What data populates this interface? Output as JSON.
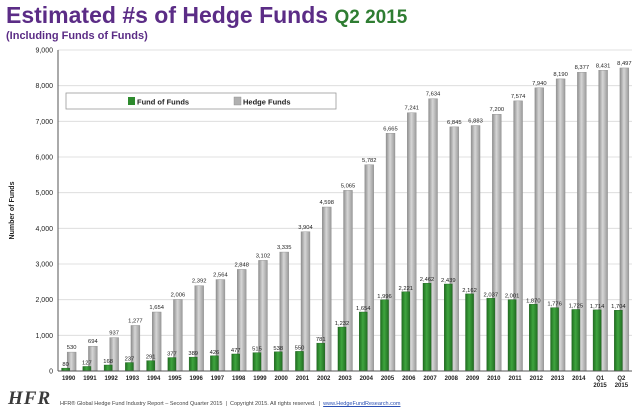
{
  "header": {
    "title": "Estimated #s of Hedge Funds",
    "title_accent": "Q2 2015",
    "subtitle": "(Including Funds of Funds)"
  },
  "footer": {
    "logo": "HFR",
    "report": "HFR® Global Hedge Fund Industry Report – Second Quarter 2015",
    "copyright": "Copyright 2015. All rights reserved.",
    "website": "www.HedgeFundResearch.com"
  },
  "colors": {
    "title": "#5b2c86",
    "accent": "#2f7d32",
    "fund_of_funds": "#2e8b2e",
    "hedge_funds": "#a8a8a8"
  },
  "chart_data": {
    "type": "bar",
    "title": "Estimated #s of Hedge Funds Q2 2015",
    "subtitle": "(Including Funds of Funds)",
    "xlabel": "",
    "ylabel": "Number of Funds",
    "ylim": [
      0,
      9000
    ],
    "yticks": [
      0,
      1000,
      2000,
      3000,
      4000,
      5000,
      6000,
      7000,
      8000,
      9000
    ],
    "ytick_labels": [
      "0",
      "1,000",
      "2,000",
      "3,000",
      "4,000",
      "5,000",
      "6,000",
      "7,000",
      "8,000",
      "9,000"
    ],
    "grid": true,
    "legend_position": "top-left",
    "categories": [
      "1990",
      "1991",
      "1992",
      "1993",
      "1994",
      "1995",
      "1996",
      "1997",
      "1998",
      "1999",
      "2000",
      "2001",
      "2002",
      "2003",
      "2004",
      "2005",
      "2006",
      "2007",
      "2008",
      "2009",
      "2010",
      "2011",
      "2012",
      "2013",
      "2014",
      "Q1 2015",
      "Q2 2015"
    ],
    "series": [
      {
        "name": "Fund of Funds",
        "values": [
          80,
          127,
          168,
          237,
          291,
          377,
          389,
          426,
          477,
          515,
          538,
          550,
          781,
          1232,
          1654,
          1996,
          2221,
          2462,
          2439,
          2162,
          2037,
          2001,
          1870,
          1776,
          1725,
          1714,
          1704
        ],
        "labels": [
          "80",
          "127",
          "168",
          "237",
          "291",
          "377",
          "389",
          "426",
          "477",
          "515",
          "538",
          "550",
          "781",
          "1,232",
          "1,654",
          "1,996",
          "2,221",
          "2,462",
          "2,439",
          "2,162",
          "2,037",
          "2,001",
          "1,870",
          "1,776",
          "1,725",
          "1,714",
          "1,704"
        ]
      },
      {
        "name": "Hedge Funds",
        "values": [
          530,
          694,
          937,
          1277,
          1654,
          2006,
          2392,
          2564,
          2848,
          3102,
          3335,
          3904,
          4598,
          5065,
          5782,
          6665,
          7241,
          7634,
          6845,
          6883,
          7200,
          7574,
          7940,
          8190,
          8377,
          8431,
          8497
        ],
        "labels": [
          "530",
          "694",
          "937",
          "1,277",
          "1,654",
          "2,006",
          "2,392",
          "2,564",
          "2,848",
          "3,102",
          "3,335",
          "3,904",
          "4,598",
          "5,065",
          "5,782",
          "6,665",
          "7,241",
          "7,634",
          "6,845",
          "6,883",
          "7,200",
          "7,574",
          "7,940",
          "8,190",
          "8,377",
          "8,431",
          "8,497"
        ]
      }
    ]
  }
}
